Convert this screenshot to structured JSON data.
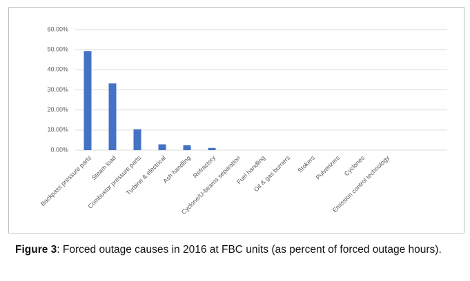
{
  "chart_data": {
    "type": "bar",
    "categories": [
      "Backpass pressure parts",
      "Steam load",
      "Combustor pressure parts",
      "Turbine & electrical",
      "Ash handling",
      "Refractory",
      "Cyclone/U-beams separation",
      "Fuel handling",
      "Oil & gas burners",
      "Stokers",
      "Pulverizers",
      "Cyclones",
      "Emission control technology"
    ],
    "values": [
      49.3,
      33.2,
      10.4,
      2.9,
      2.4,
      1.1,
      0,
      0,
      0,
      0,
      0,
      0,
      0
    ],
    "color": "#4472c4",
    "ylim": [
      0,
      60
    ],
    "yticks": [
      {
        "value": 0,
        "label": "0.00%"
      },
      {
        "value": 10,
        "label": "10.00%"
      },
      {
        "value": 20,
        "label": "20.00%"
      },
      {
        "value": 30,
        "label": "30.00%"
      },
      {
        "value": 40,
        "label": "40.00%"
      },
      {
        "value": 50,
        "label": "50.00%"
      },
      {
        "value": 60,
        "label": "60.00%"
      }
    ],
    "grid": true
  },
  "caption": {
    "label": "Figure 3",
    "text": ": Forced outage causes in 2016 at FBC units (as percent of forced outage hours)."
  }
}
